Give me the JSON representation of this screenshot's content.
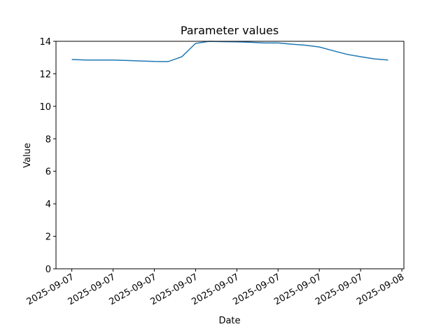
{
  "chart_data": {
    "type": "line",
    "title": "Parameter values",
    "xlabel": "Date",
    "ylabel": "Value",
    "x": [
      "2025-09-07T00:00",
      "2025-09-07T01:00",
      "2025-09-07T02:00",
      "2025-09-07T03:00",
      "2025-09-07T04:00",
      "2025-09-07T05:00",
      "2025-09-07T06:00",
      "2025-09-07T07:00",
      "2025-09-07T08:00",
      "2025-09-07T09:00",
      "2025-09-07T10:00",
      "2025-09-07T11:00",
      "2025-09-07T12:00",
      "2025-09-07T13:00",
      "2025-09-07T14:00",
      "2025-09-07T15:00",
      "2025-09-07T16:00",
      "2025-09-07T17:00",
      "2025-09-07T18:00",
      "2025-09-07T19:00",
      "2025-09-07T20:00",
      "2025-09-07T21:00",
      "2025-09-07T22:00",
      "2025-09-07T23:00"
    ],
    "values": [
      12.88,
      12.85,
      12.85,
      12.85,
      12.82,
      12.79,
      12.76,
      12.75,
      13.05,
      13.87,
      14.0,
      13.98,
      13.97,
      13.94,
      13.9,
      13.9,
      13.82,
      13.76,
      13.65,
      13.42,
      13.2,
      13.05,
      12.92,
      12.85
    ],
    "color": "#1f77b4",
    "xlim": [
      "2025-09-06T22:51",
      "2025-09-08T00:09"
    ],
    "xticks": [
      {
        "value": "2025-09-07T00:00",
        "label": "2025-09-07"
      },
      {
        "value": "2025-09-07T03:00",
        "label": "2025-09-07"
      },
      {
        "value": "2025-09-07T06:00",
        "label": "2025-09-07"
      },
      {
        "value": "2025-09-07T09:00",
        "label": "2025-09-07"
      },
      {
        "value": "2025-09-07T12:00",
        "label": "2025-09-07"
      },
      {
        "value": "2025-09-07T15:00",
        "label": "2025-09-07"
      },
      {
        "value": "2025-09-07T18:00",
        "label": "2025-09-07"
      },
      {
        "value": "2025-09-07T21:00",
        "label": "2025-09-07"
      },
      {
        "value": "2025-09-08T00:00",
        "label": "2025-09-08"
      }
    ],
    "ylim": [
      0,
      14
    ],
    "yticks": [
      0,
      2,
      4,
      6,
      8,
      10,
      12,
      14
    ],
    "grid": false
  }
}
